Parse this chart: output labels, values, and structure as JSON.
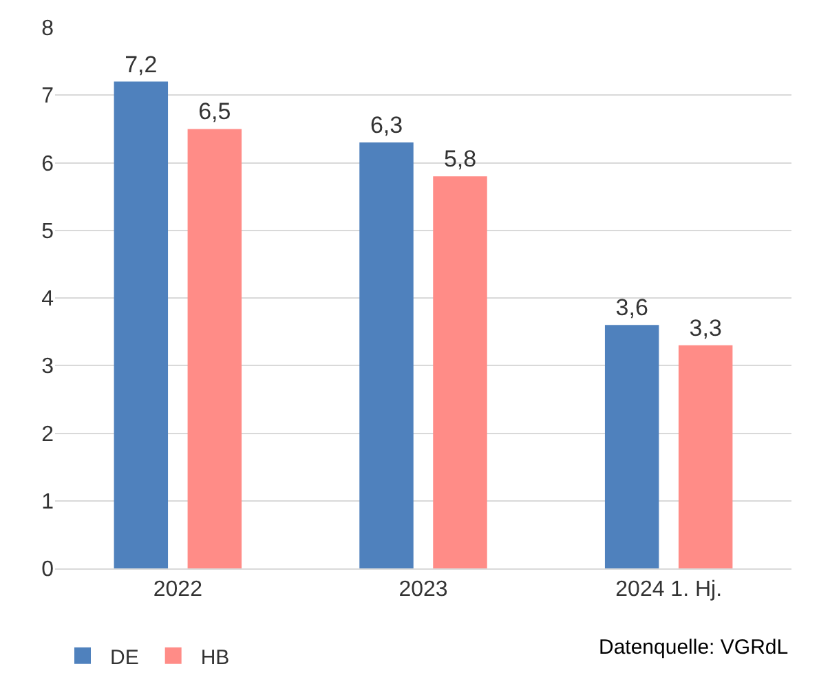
{
  "chart_data": {
    "type": "bar",
    "categories": [
      "2022",
      "2023",
      "2024 1. Hj."
    ],
    "series": [
      {
        "name": "DE",
        "color": "#4f81bd",
        "values": [
          7.2,
          6.3,
          3.6
        ],
        "value_labels": [
          "7,2",
          "6,3",
          "3,6"
        ]
      },
      {
        "name": "HB",
        "color": "#ff8c87",
        "values": [
          6.5,
          5.8,
          3.3
        ],
        "value_labels": [
          "6,5",
          "5,8",
          "3,3"
        ]
      }
    ],
    "ylim": [
      0,
      8
    ],
    "yticks": [
      0,
      1,
      2,
      3,
      4,
      5,
      6,
      7,
      8
    ],
    "grid": "y",
    "legend": "bottom left",
    "annotations": [
      "Datenquelle: VGRdL"
    ]
  }
}
